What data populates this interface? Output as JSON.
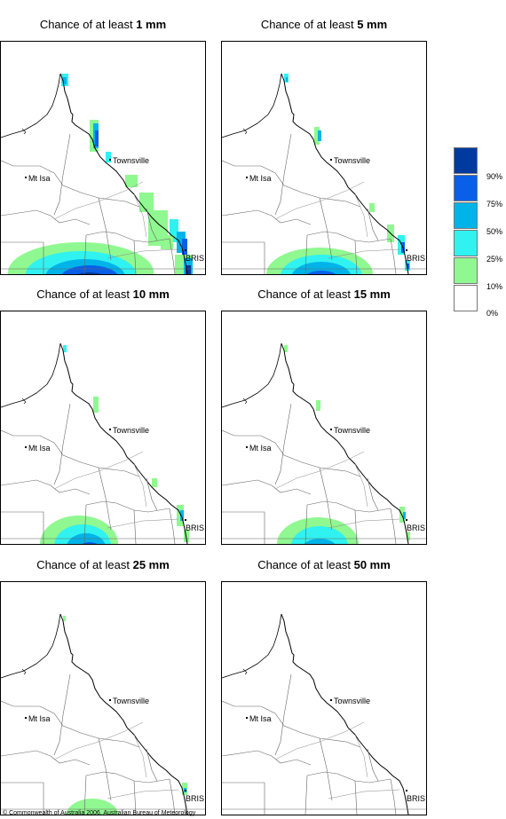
{
  "panels": [
    {
      "prefix": "Chance of at least ",
      "amount": "1 mm"
    },
    {
      "prefix": "Chance of at least ",
      "amount": "5 mm"
    },
    {
      "prefix": "Chance of at least ",
      "amount": "10 mm"
    },
    {
      "prefix": "Chance of at least ",
      "amount": "15 mm"
    },
    {
      "prefix": "Chance of at least ",
      "amount": "25 mm"
    },
    {
      "prefix": "Chance of at least ",
      "amount": "50 mm"
    }
  ],
  "places": {
    "townsville": "Townsville",
    "mt_isa": "Mt Isa",
    "bris": "BRIS"
  },
  "legend": {
    "labels": [
      "90%",
      "75%",
      "50%",
      "25%",
      "10%",
      "0%"
    ],
    "colors": [
      "#003a9e",
      "#0a5fe8",
      "#00b4ea",
      "#30f2f0",
      "#90f890",
      "#ffffff"
    ]
  },
  "copyright": "© Commonwealth of Australia 2006, Australian Bureau of Meteorology"
}
